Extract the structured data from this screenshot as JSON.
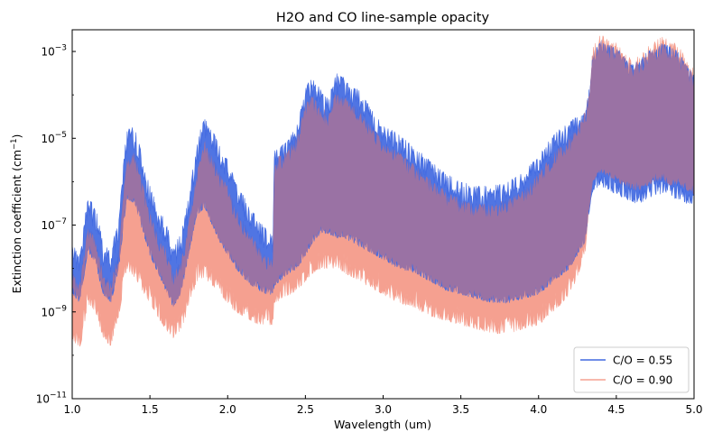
{
  "chart_data": {
    "type": "line",
    "title": "H2O and CO line-sample opacity",
    "xlabel": "Wavelength (um)",
    "ylabel": "Extinction coefficient (cm",
    "ylabel_sup": "−1",
    "ylabel_close": ")",
    "xlim": [
      1.0,
      5.0
    ],
    "ylim_log10": [
      -11,
      -2.5
    ],
    "y_scale": "log",
    "x_ticks": [
      "1.0",
      "1.5",
      "2.0",
      "2.5",
      "3.0",
      "3.5",
      "4.0",
      "4.5",
      "5.0"
    ],
    "x_tick_values": [
      1.0,
      1.5,
      2.0,
      2.5,
      3.0,
      3.5,
      4.0,
      4.5,
      5.0
    ],
    "y_ticks": [
      {
        "base": "10",
        "exp": "−11",
        "log10": -11
      },
      {
        "base": "10",
        "exp": "−9",
        "log10": -9
      },
      {
        "base": "10",
        "exp": "−7",
        "log10": -7
      },
      {
        "base": "10",
        "exp": "−5",
        "log10": -5
      },
      {
        "base": "10",
        "exp": "−3",
        "log10": -3
      }
    ],
    "grid": false,
    "legend_position": "bottom-right",
    "series": [
      {
        "name": "C/O = 0.55",
        "color": "#4169e1",
        "envelope_upper_log10": [
          [
            1.0,
            -7.4
          ],
          [
            1.05,
            -7.7
          ],
          [
            1.1,
            -6.3
          ],
          [
            1.15,
            -6.6
          ],
          [
            1.2,
            -7.4
          ],
          [
            1.25,
            -7.6
          ],
          [
            1.3,
            -6.8
          ],
          [
            1.35,
            -4.8
          ],
          [
            1.4,
            -4.7
          ],
          [
            1.45,
            -5.4
          ],
          [
            1.5,
            -6.1
          ],
          [
            1.55,
            -6.6
          ],
          [
            1.6,
            -6.9
          ],
          [
            1.65,
            -7.5
          ],
          [
            1.7,
            -7.2
          ],
          [
            1.75,
            -6.3
          ],
          [
            1.8,
            -5.2
          ],
          [
            1.85,
            -4.4
          ],
          [
            1.9,
            -4.8
          ],
          [
            1.95,
            -5.2
          ],
          [
            2.0,
            -5.5
          ],
          [
            2.05,
            -6.0
          ],
          [
            2.1,
            -6.3
          ],
          [
            2.15,
            -6.6
          ],
          [
            2.2,
            -6.9
          ],
          [
            2.25,
            -7.1
          ],
          [
            2.29,
            -7.2
          ],
          [
            2.3,
            -5.3
          ],
          [
            2.4,
            -5.0
          ],
          [
            2.45,
            -4.6
          ],
          [
            2.5,
            -3.8
          ],
          [
            2.55,
            -3.6
          ],
          [
            2.6,
            -3.9
          ],
          [
            2.65,
            -4.0
          ],
          [
            2.7,
            -3.5
          ],
          [
            2.75,
            -3.6
          ],
          [
            2.8,
            -3.8
          ],
          [
            2.85,
            -3.9
          ],
          [
            2.9,
            -4.2
          ],
          [
            2.95,
            -4.4
          ],
          [
            3.0,
            -4.7
          ],
          [
            3.1,
            -4.9
          ],
          [
            3.2,
            -5.2
          ],
          [
            3.3,
            -5.5
          ],
          [
            3.4,
            -5.8
          ],
          [
            3.5,
            -6.0
          ],
          [
            3.6,
            -6.1
          ],
          [
            3.7,
            -6.1
          ],
          [
            3.8,
            -6.0
          ],
          [
            3.9,
            -5.8
          ],
          [
            4.0,
            -5.4
          ],
          [
            4.1,
            -4.9
          ],
          [
            4.2,
            -4.6
          ],
          [
            4.25,
            -4.5
          ],
          [
            4.3,
            -4.4
          ],
          [
            4.32,
            -4.0
          ],
          [
            4.35,
            -3.0
          ],
          [
            4.4,
            -2.7
          ],
          [
            4.45,
            -2.85
          ],
          [
            4.5,
            -2.9
          ],
          [
            4.55,
            -3.1
          ],
          [
            4.6,
            -3.3
          ],
          [
            4.65,
            -3.2
          ],
          [
            4.7,
            -3.0
          ],
          [
            4.75,
            -2.9
          ],
          [
            4.8,
            -2.8
          ],
          [
            4.85,
            -2.9
          ],
          [
            4.9,
            -3.0
          ],
          [
            4.95,
            -3.3
          ],
          [
            5.0,
            -3.5
          ]
        ],
        "envelope_lower_log10": [
          [
            1.0,
            -8.6
          ],
          [
            1.05,
            -8.8
          ],
          [
            1.1,
            -7.6
          ],
          [
            1.15,
            -7.9
          ],
          [
            1.2,
            -8.6
          ],
          [
            1.25,
            -8.8
          ],
          [
            1.3,
            -8.0
          ],
          [
            1.35,
            -6.4
          ],
          [
            1.4,
            -6.5
          ],
          [
            1.45,
            -7.1
          ],
          [
            1.5,
            -7.7
          ],
          [
            1.55,
            -8.1
          ],
          [
            1.6,
            -8.5
          ],
          [
            1.65,
            -8.9
          ],
          [
            1.7,
            -8.6
          ],
          [
            1.75,
            -7.7
          ],
          [
            1.8,
            -6.8
          ],
          [
            1.85,
            -6.6
          ],
          [
            1.9,
            -7.0
          ],
          [
            1.95,
            -7.4
          ],
          [
            2.0,
            -7.7
          ],
          [
            2.05,
            -8.0
          ],
          [
            2.1,
            -8.2
          ],
          [
            2.15,
            -8.4
          ],
          [
            2.2,
            -8.5
          ],
          [
            2.25,
            -8.6
          ],
          [
            2.29,
            -8.6
          ],
          [
            2.3,
            -8.4
          ],
          [
            2.4,
            -8.1
          ],
          [
            2.45,
            -8.0
          ],
          [
            2.5,
            -7.7
          ],
          [
            2.55,
            -7.4
          ],
          [
            2.6,
            -7.2
          ],
          [
            2.65,
            -7.2
          ],
          [
            2.7,
            -7.3
          ],
          [
            2.75,
            -7.3
          ],
          [
            2.8,
            -7.4
          ],
          [
            2.85,
            -7.5
          ],
          [
            2.9,
            -7.6
          ],
          [
            2.95,
            -7.7
          ],
          [
            3.0,
            -7.8
          ],
          [
            3.1,
            -8.0
          ],
          [
            3.2,
            -8.1
          ],
          [
            3.3,
            -8.3
          ],
          [
            3.4,
            -8.5
          ],
          [
            3.5,
            -8.6
          ],
          [
            3.6,
            -8.7
          ],
          [
            3.7,
            -8.8
          ],
          [
            3.8,
            -8.8
          ],
          [
            3.9,
            -8.7
          ],
          [
            4.0,
            -8.6
          ],
          [
            4.1,
            -8.3
          ],
          [
            4.2,
            -8.0
          ],
          [
            4.25,
            -7.7
          ],
          [
            4.3,
            -7.4
          ],
          [
            4.32,
            -6.9
          ],
          [
            4.35,
            -6.2
          ],
          [
            4.4,
            -6.1
          ],
          [
            4.45,
            -6.2
          ],
          [
            4.5,
            -6.3
          ],
          [
            4.55,
            -6.4
          ],
          [
            4.6,
            -6.5
          ],
          [
            4.65,
            -6.5
          ],
          [
            4.7,
            -6.4
          ],
          [
            4.75,
            -6.3
          ],
          [
            4.8,
            -6.3
          ],
          [
            4.85,
            -6.4
          ],
          [
            4.9,
            -6.4
          ],
          [
            4.95,
            -6.5
          ],
          [
            5.0,
            -6.6
          ]
        ]
      },
      {
        "name": "C/O = 0.90",
        "color": "#f5a090",
        "envelope_upper_log10": [
          [
            1.0,
            -8.1
          ],
          [
            1.05,
            -8.3
          ],
          [
            1.1,
            -7.0
          ],
          [
            1.15,
            -7.3
          ],
          [
            1.2,
            -8.1
          ],
          [
            1.25,
            -8.3
          ],
          [
            1.3,
            -7.5
          ],
          [
            1.35,
            -5.4
          ],
          [
            1.4,
            -5.3
          ],
          [
            1.45,
            -6.0
          ],
          [
            1.5,
            -6.7
          ],
          [
            1.55,
            -7.2
          ],
          [
            1.6,
            -7.5
          ],
          [
            1.65,
            -8.1
          ],
          [
            1.7,
            -7.8
          ],
          [
            1.75,
            -6.9
          ],
          [
            1.8,
            -5.8
          ],
          [
            1.85,
            -5.0
          ],
          [
            1.9,
            -5.4
          ],
          [
            1.95,
            -5.8
          ],
          [
            2.0,
            -6.1
          ],
          [
            2.05,
            -6.6
          ],
          [
            2.1,
            -6.9
          ],
          [
            2.15,
            -7.2
          ],
          [
            2.2,
            -7.5
          ],
          [
            2.25,
            -7.7
          ],
          [
            2.29,
            -7.8
          ],
          [
            2.3,
            -5.5
          ],
          [
            2.4,
            -5.2
          ],
          [
            2.45,
            -4.9
          ],
          [
            2.5,
            -4.2
          ],
          [
            2.55,
            -4.0
          ],
          [
            2.6,
            -4.3
          ],
          [
            2.65,
            -4.4
          ],
          [
            2.7,
            -3.9
          ],
          [
            2.75,
            -4.0
          ],
          [
            2.8,
            -4.2
          ],
          [
            2.85,
            -4.3
          ],
          [
            2.9,
            -4.6
          ],
          [
            2.95,
            -4.8
          ],
          [
            3.0,
            -5.1
          ],
          [
            3.1,
            -5.3
          ],
          [
            3.2,
            -5.6
          ],
          [
            3.3,
            -5.9
          ],
          [
            3.4,
            -6.2
          ],
          [
            3.5,
            -6.4
          ],
          [
            3.6,
            -6.5
          ],
          [
            3.7,
            -6.5
          ],
          [
            3.8,
            -6.4
          ],
          [
            3.9,
            -6.2
          ],
          [
            4.0,
            -5.8
          ],
          [
            4.1,
            -5.3
          ],
          [
            4.2,
            -5.0
          ],
          [
            4.25,
            -4.7
          ],
          [
            4.3,
            -4.3
          ],
          [
            4.32,
            -3.9
          ],
          [
            4.35,
            -2.9
          ],
          [
            4.4,
            -2.6
          ],
          [
            4.45,
            -2.75
          ],
          [
            4.5,
            -2.8
          ],
          [
            4.55,
            -3.0
          ],
          [
            4.6,
            -3.2
          ],
          [
            4.65,
            -3.1
          ],
          [
            4.7,
            -2.9
          ],
          [
            4.75,
            -2.75
          ],
          [
            4.8,
            -2.65
          ],
          [
            4.85,
            -2.75
          ],
          [
            4.9,
            -2.85
          ],
          [
            4.95,
            -3.2
          ],
          [
            5.0,
            -3.4
          ]
        ],
        "envelope_lower_log10": [
          [
            1.0,
            -9.6
          ],
          [
            1.05,
            -9.9
          ],
          [
            1.1,
            -8.8
          ],
          [
            1.15,
            -9.0
          ],
          [
            1.2,
            -9.6
          ],
          [
            1.25,
            -9.8
          ],
          [
            1.3,
            -9.1
          ],
          [
            1.35,
            -8.0
          ],
          [
            1.4,
            -8.2
          ],
          [
            1.45,
            -8.5
          ],
          [
            1.5,
            -8.8
          ],
          [
            1.55,
            -9.1
          ],
          [
            1.6,
            -9.4
          ],
          [
            1.65,
            -9.6
          ],
          [
            1.7,
            -9.4
          ],
          [
            1.75,
            -8.9
          ],
          [
            1.8,
            -8.3
          ],
          [
            1.85,
            -8.2
          ],
          [
            1.9,
            -8.4
          ],
          [
            1.95,
            -8.6
          ],
          [
            2.0,
            -8.8
          ],
          [
            2.05,
            -9.0
          ],
          [
            2.1,
            -9.1
          ],
          [
            2.15,
            -9.2
          ],
          [
            2.2,
            -9.3
          ],
          [
            2.25,
            -9.3
          ],
          [
            2.29,
            -9.3
          ],
          [
            2.3,
            -8.8
          ],
          [
            2.4,
            -8.6
          ],
          [
            2.45,
            -8.5
          ],
          [
            2.5,
            -8.3
          ],
          [
            2.55,
            -8.1
          ],
          [
            2.6,
            -8.0
          ],
          [
            2.65,
            -8.0
          ],
          [
            2.7,
            -8.0
          ],
          [
            2.75,
            -8.1
          ],
          [
            2.8,
            -8.2
          ],
          [
            2.85,
            -8.3
          ],
          [
            2.9,
            -8.4
          ],
          [
            2.95,
            -8.5
          ],
          [
            3.0,
            -8.6
          ],
          [
            3.1,
            -8.8
          ],
          [
            3.2,
            -8.9
          ],
          [
            3.3,
            -9.1
          ],
          [
            3.4,
            -9.2
          ],
          [
            3.5,
            -9.3
          ],
          [
            3.6,
            -9.4
          ],
          [
            3.7,
            -9.5
          ],
          [
            3.8,
            -9.5
          ],
          [
            3.9,
            -9.4
          ],
          [
            4.0,
            -9.3
          ],
          [
            4.1,
            -9.0
          ],
          [
            4.2,
            -8.6
          ],
          [
            4.25,
            -8.2
          ],
          [
            4.3,
            -7.6
          ],
          [
            4.32,
            -6.8
          ],
          [
            4.35,
            -6.0
          ],
          [
            4.4,
            -5.8
          ],
          [
            4.45,
            -5.9
          ],
          [
            4.5,
            -6.0
          ],
          [
            4.55,
            -6.1
          ],
          [
            4.6,
            -6.2
          ],
          [
            4.65,
            -6.2
          ],
          [
            4.7,
            -6.1
          ],
          [
            4.75,
            -6.0
          ],
          [
            4.8,
            -6.0
          ],
          [
            4.85,
            -6.1
          ],
          [
            4.9,
            -6.1
          ],
          [
            4.95,
            -6.2
          ],
          [
            5.0,
            -6.3
          ]
        ]
      }
    ]
  },
  "style": {
    "overlap_color": "#9a72a4",
    "axis_color": "#000000"
  }
}
